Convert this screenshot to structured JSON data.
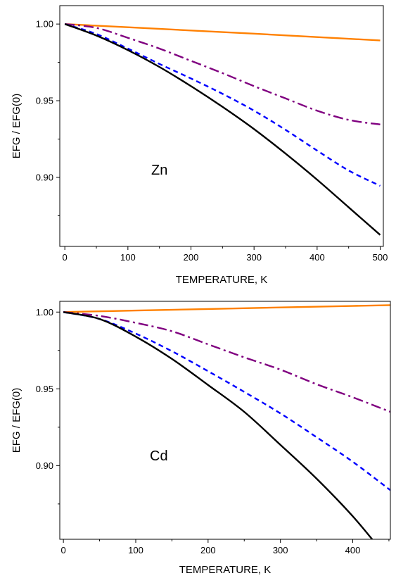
{
  "chart_data": [
    {
      "type": "line",
      "annotation": "Zn",
      "xlabel": "TEMPERATURE, K",
      "ylabel": "EFG / EFG(0)",
      "xlim": [
        -8,
        505
      ],
      "ylim": [
        0.855,
        1.012
      ],
      "xticks": [
        0,
        100,
        200,
        300,
        400,
        500
      ],
      "xtick_labels": [
        "0",
        "100",
        "200",
        "300",
        "400",
        "500"
      ],
      "yticks": [
        0.9,
        0.95,
        1.0
      ],
      "ytick_labels": [
        "0.90",
        "0.95",
        "1.00"
      ],
      "grid": false,
      "series": [
        {
          "color": "#ff8000",
          "dash": "solid",
          "x": [
            0,
            100,
            200,
            300,
            400,
            500
          ],
          "y": [
            1.0,
            0.9979,
            0.9958,
            0.9937,
            0.9915,
            0.9893
          ]
        },
        {
          "color": "#800080",
          "dash": "dashdot",
          "x": [
            0,
            50,
            100,
            150,
            200,
            250,
            300,
            350,
            400,
            450,
            500
          ],
          "y": [
            1.0,
            0.9975,
            0.991,
            0.984,
            0.976,
            0.968,
            0.9595,
            0.9515,
            0.9435,
            0.9375,
            0.9345
          ]
        },
        {
          "color": "#0000ff",
          "dash": "dashed",
          "x": [
            0,
            50,
            100,
            150,
            200,
            250,
            300,
            350,
            400,
            450,
            500
          ],
          "y": [
            1.0,
            0.9935,
            0.984,
            0.974,
            0.9645,
            0.9545,
            0.9435,
            0.931,
            0.9175,
            0.9045,
            0.8945
          ]
        },
        {
          "color": "#000000",
          "dash": "solid",
          "x": [
            0,
            50,
            100,
            150,
            200,
            250,
            300,
            350,
            400,
            450,
            500
          ],
          "y": [
            1.0,
            0.9925,
            0.983,
            0.972,
            0.9595,
            0.946,
            0.9315,
            0.9155,
            0.8985,
            0.8805,
            0.8625
          ]
        }
      ]
    },
    {
      "type": "line",
      "annotation": "Cd",
      "xlabel": "TEMPERATURE, K",
      "ylabel": "EFG / EFG(0)",
      "xlim": [
        -5,
        452
      ],
      "ylim": [
        0.852,
        1.007
      ],
      "xticks": [
        0,
        100,
        200,
        300,
        400
      ],
      "xtick_labels": [
        "0",
        "100",
        "200",
        "300",
        "400"
      ],
      "yticks": [
        0.9,
        0.95,
        1.0
      ],
      "ytick_labels": [
        "0.90",
        "0.95",
        "1.00"
      ],
      "grid": false,
      "series": [
        {
          "color": "#ff8000",
          "dash": "solid",
          "x": [
            0,
            100,
            200,
            300,
            400,
            452
          ],
          "y": [
            1.0,
            1.001,
            1.002,
            1.003,
            1.004,
            1.0045
          ]
        },
        {
          "color": "#800080",
          "dash": "dashdot",
          "x": [
            0,
            50,
            100,
            150,
            200,
            250,
            300,
            350,
            400,
            452
          ],
          "y": [
            1.0,
            0.9975,
            0.993,
            0.9875,
            0.979,
            0.9705,
            0.9625,
            0.953,
            0.9445,
            0.935
          ]
        },
        {
          "color": "#0000ff",
          "dash": "dashed",
          "x": [
            0,
            50,
            100,
            150,
            200,
            250,
            300,
            350,
            400,
            452
          ],
          "y": [
            1.0,
            0.9955,
            0.986,
            0.9745,
            0.9615,
            0.948,
            0.934,
            0.9185,
            0.9025,
            0.884
          ]
        },
        {
          "color": "#000000",
          "dash": "solid",
          "x": [
            0,
            50,
            100,
            150,
            200,
            250,
            300,
            350,
            400,
            438
          ],
          "y": [
            1.0,
            0.9955,
            0.984,
            0.9695,
            0.9525,
            0.935,
            0.9135,
            0.8915,
            0.867,
            0.8455
          ]
        }
      ]
    }
  ]
}
